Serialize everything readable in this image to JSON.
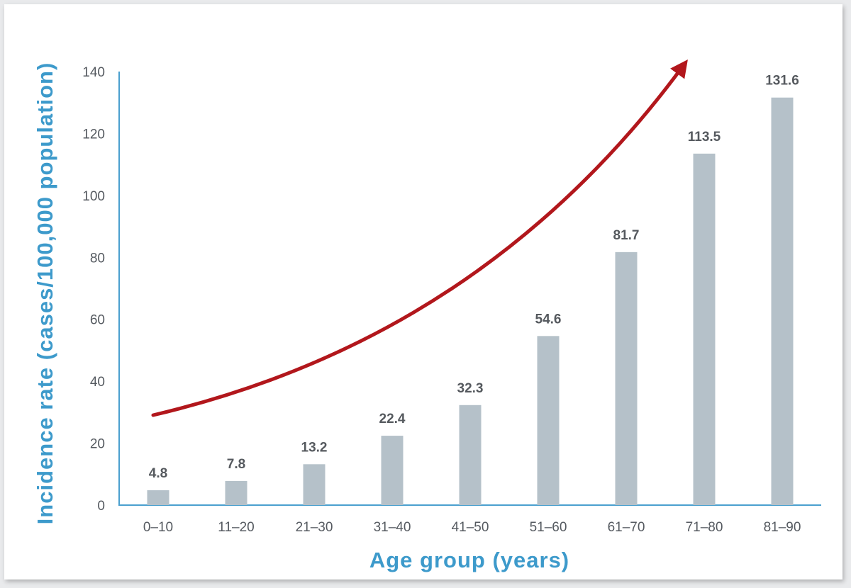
{
  "chart_data": {
    "type": "bar",
    "categories": [
      "0–10",
      "11–20",
      "21–30",
      "31–40",
      "41–50",
      "51–60",
      "61–70",
      "71–80",
      "81–90"
    ],
    "values": [
      4.8,
      7.8,
      13.2,
      22.4,
      32.3,
      54.6,
      81.7,
      113.5,
      131.6
    ],
    "value_labels": [
      "4.8",
      "7.8",
      "13.2",
      "22.4",
      "32.3",
      "54.6",
      "81.7",
      "113.5",
      "131.6"
    ],
    "title": "",
    "xlabel": "Age group (years)",
    "ylabel": "Incidence rate (cases/100,000 population)",
    "ylim": [
      0,
      140
    ],
    "yticks": [
      0,
      20,
      40,
      60,
      80,
      100,
      120,
      140
    ],
    "ytick_labels": [
      "0",
      "20",
      "40",
      "60",
      "80",
      "100",
      "120",
      "140"
    ],
    "grid": false,
    "legend": "none",
    "annotation": "trend-arrow",
    "colors": {
      "bar": "#b5c1c9",
      "axis": "#4aa0cf",
      "arrow": "#b2171c",
      "axis_title": "#3d9acb"
    }
  }
}
